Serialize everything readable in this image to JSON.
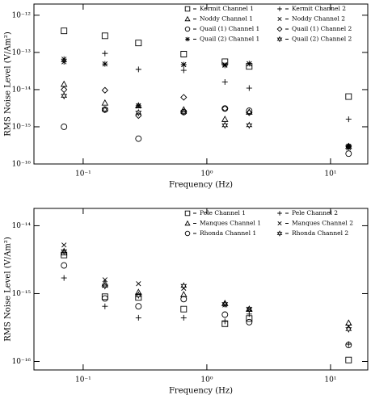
{
  "chart_data": [
    {
      "type": "scatter",
      "xlabel": "Frequency (Hz)",
      "ylabel": "RMS Noise Level (V/Am²)",
      "xscale": "log",
      "yscale": "log",
      "grid": false,
      "legend": "top-right",
      "color": "#000000",
      "xlim": [
        0.04,
        20
      ],
      "ylim": [
        1e-16,
        2e-12
      ],
      "xticks": [
        {
          "value": 0.1,
          "label": "10⁻¹"
        },
        {
          "value": 1,
          "label": "10⁰"
        },
        {
          "value": 10,
          "label": "10¹"
        }
      ],
      "yticks": [
        {
          "value": 1e-16,
          "label": "10⁻¹⁶"
        },
        {
          "value": 1e-15,
          "label": "10⁻¹⁵"
        },
        {
          "value": 1e-14,
          "label": "10⁻¹⁴"
        },
        {
          "value": 1e-13,
          "label": "10⁻¹³"
        },
        {
          "value": 1e-12,
          "label": "10⁻¹²"
        }
      ],
      "x": [
        0.07,
        0.15,
        0.28,
        0.65,
        1.4,
        2.2,
        14
      ],
      "series": [
        {
          "name": "Kermit Channel 1",
          "marker": "square",
          "values": [
            3.8e-13,
            2.8e-13,
            1.8e-13,
            9e-14,
            5.6e-14,
            4.2e-14,
            6.5e-15
          ]
        },
        {
          "name": "Kermit Channel 2",
          "marker": "plus",
          "values": [
            5.6e-14,
            9.4e-14,
            3.5e-14,
            3.3e-14,
            1.6e-14,
            1.1e-14,
            1.6e-15
          ]
        },
        {
          "name": "Noddy Channel 1",
          "marker": "triangle",
          "values": [
            1.4e-14,
            4.4e-15,
            3.7e-15,
            2.9e-15,
            1.6e-15,
            2.5e-15,
            3e-16
          ]
        },
        {
          "name": "Noddy Channel 2",
          "marker": "cross",
          "values": [
            5.6e-14,
            4.9e-14,
            3.6e-15,
            4.7e-14,
            4.7e-14,
            4.9e-14,
            2.7e-16
          ]
        },
        {
          "name": "Quail (1) Channel 1",
          "marker": "circle",
          "values": [
            1e-15,
            2.9e-15,
            4.8e-16,
            2.5e-15,
            3.1e-15,
            2.7e-15,
            1.9e-16
          ]
        },
        {
          "name": "Quail (1) Channel 2",
          "marker": "diamond",
          "values": [
            1e-14,
            9.6e-15,
            2e-15,
            6.2e-15,
            3.1e-15,
            2.4e-15,
            3e-16
          ]
        },
        {
          "name": "Quail (2) Channel 1",
          "marker": "asterisk",
          "values": [
            6.6e-14,
            4.9e-14,
            3.7e-15,
            4.7e-14,
            4.5e-14,
            5e-14,
            3e-16
          ]
        },
        {
          "name": "Quail (2) Channel 2",
          "marker": "star",
          "values": [
            6.8e-15,
            2.9e-15,
            2.4e-15,
            2.5e-15,
            1.1e-15,
            1.1e-15,
            2.9e-16
          ]
        }
      ]
    },
    {
      "type": "scatter",
      "xlabel": "Frequency (Hz)",
      "ylabel": "RMS Noise Level (V/Am²)",
      "xscale": "log",
      "yscale": "log",
      "grid": false,
      "legend": "top-right",
      "color": "#000000",
      "xlim": [
        0.04,
        20
      ],
      "ylim": [
        7.5e-17,
        1.8e-14
      ],
      "xticks": [
        {
          "value": 0.1,
          "label": "10⁻¹"
        },
        {
          "value": 1,
          "label": "10⁰"
        },
        {
          "value": 10,
          "label": "10¹"
        }
      ],
      "yticks": [
        {
          "value": 1e-16,
          "label": "10⁻¹⁶"
        },
        {
          "value": 1e-15,
          "label": "10⁻¹⁵"
        },
        {
          "value": 1e-14,
          "label": "10⁻¹⁴"
        }
      ],
      "x": [
        0.07,
        0.15,
        0.28,
        0.65,
        1.4,
        2.2,
        14
      ],
      "series": [
        {
          "name": "Pele Channel 1",
          "marker": "square",
          "values": [
            3.7e-15,
            9e-16,
            8.8e-16,
            5.9e-16,
            3.6e-16,
            4.3e-16,
            1.05e-16
          ]
        },
        {
          "name": "Pele Channel 2",
          "marker": "plus",
          "values": [
            1.7e-15,
            6.5e-16,
            4.4e-16,
            4.4e-16,
            3.9e-16,
            5e-16,
            1.8e-16
          ]
        },
        {
          "name": "Manques Channel 1",
          "marker": "triangle",
          "values": [
            4e-15,
            1.4e-15,
            1.05e-15,
            9.7e-16,
            7.2e-16,
            5.9e-16,
            3.7e-16
          ]
        },
        {
          "name": "Manques Channel 2",
          "marker": "cross",
          "values": [
            5.2e-15,
            1.6e-15,
            1.4e-15,
            1.2e-15,
            6.8e-16,
            5.9e-16,
            3.3e-16
          ]
        },
        {
          "name": "Rhonda Channel 1",
          "marker": "circle",
          "values": [
            2.6e-15,
            8.5e-16,
            6.5e-16,
            8.3e-16,
            4.9e-16,
            3.8e-16,
            1.75e-16
          ]
        },
        {
          "name": "Rhonda Channel 2",
          "marker": "star",
          "values": [
            4.2e-15,
            1.3e-15,
            9.5e-16,
            1.3e-15,
            7e-16,
            5.9e-16,
            3e-16
          ]
        }
      ]
    }
  ]
}
